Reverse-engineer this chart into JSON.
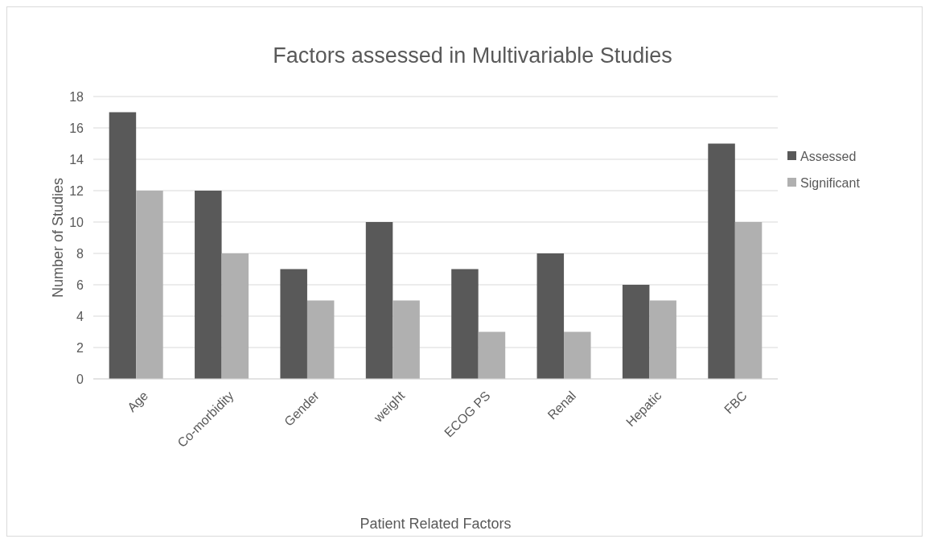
{
  "chart_data": {
    "type": "bar",
    "title": "Factors assessed in Multivariable Studies",
    "xlabel": "Patient Related Factors",
    "ylabel": "Number of Studies",
    "categories": [
      "Age",
      "Co-morbidity",
      "Gender",
      "weight",
      "ECOG PS",
      "Renal",
      "Hepatic",
      "FBC"
    ],
    "series": [
      {
        "name": "Assessed",
        "color": "#595959",
        "values": [
          17,
          12,
          7,
          10,
          7,
          8,
          6,
          15
        ]
      },
      {
        "name": "Significant",
        "color": "#b0b0b0",
        "values": [
          12,
          8,
          5,
          5,
          3,
          3,
          5,
          10
        ]
      }
    ],
    "ylim": [
      0,
      18
    ],
    "yticks": [
      0,
      2,
      4,
      6,
      8,
      10,
      12,
      14,
      16,
      18
    ],
    "grid": "y",
    "legend": "right"
  }
}
